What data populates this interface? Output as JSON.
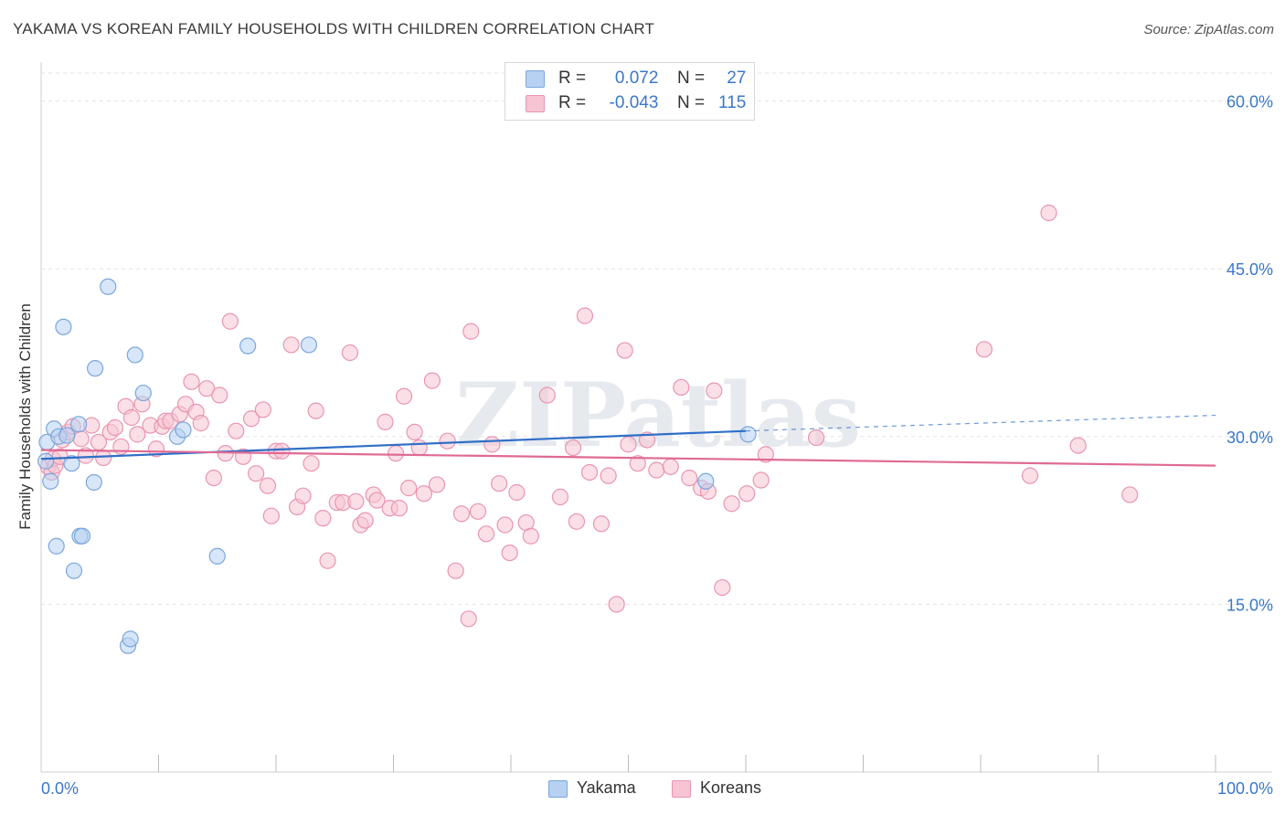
{
  "title": "YAKAMA VS KOREAN FAMILY HOUSEHOLDS WITH CHILDREN CORRELATION CHART",
  "source": "Source: ZipAtlas.com",
  "watermark": "ZIPatlas",
  "legend_top": {
    "rows": [
      {
        "r_label": "R =",
        "r_value": "0.072",
        "n_label": "N =",
        "n_value": "27"
      },
      {
        "r_label": "R =",
        "r_value": "-0.043",
        "n_label": "N =",
        "n_value": "115"
      }
    ]
  },
  "legend_bottom": [
    "Yakama",
    "Koreans"
  ],
  "colors": {
    "yakama_fill": "#b7d1f2",
    "yakama_stroke": "#7aa6dc",
    "yakama_line": "#2f6fc7",
    "koreans_fill": "#f7c4d4",
    "koreans_stroke": "#e895b0",
    "koreans_line": "#e06a94",
    "grid": "#e3e3e3",
    "axis_text": "#3a78c8"
  },
  "chart_data": {
    "type": "scatter",
    "title": "YAKAMA VS KOREAN FAMILY HOUSEHOLDS WITH CHILDREN CORRELATION CHART",
    "xlabel": "",
    "ylabel": "Family Households with Children",
    "xlim": [
      0,
      100
    ],
    "ylim": [
      0,
      62.5
    ],
    "x_tick_labels": [
      "0.0%",
      "100.0%"
    ],
    "y_ticks": [
      15,
      30,
      45,
      60
    ],
    "y_tick_labels": [
      "15.0%",
      "30.0%",
      "45.0%",
      "60.0%"
    ],
    "series": [
      {
        "name": "Yakama",
        "R": 0.072,
        "N": 27,
        "trend": {
          "x0": 0,
          "y0": 28.0,
          "x1": 60,
          "y1": 30.5,
          "dash_to_x": 100,
          "dash_to_y": 31.9
        },
        "points": [
          [
            0.4,
            27.8
          ],
          [
            0.5,
            29.5
          ],
          [
            0.8,
            26.0
          ],
          [
            1.1,
            30.7
          ],
          [
            1.3,
            20.2
          ],
          [
            1.5,
            30.0
          ],
          [
            1.9,
            39.8
          ],
          [
            2.2,
            30.1
          ],
          [
            2.6,
            27.6
          ],
          [
            2.8,
            18.0
          ],
          [
            3.2,
            31.1
          ],
          [
            3.3,
            21.1
          ],
          [
            3.5,
            21.1
          ],
          [
            4.5,
            25.9
          ],
          [
            4.6,
            36.1
          ],
          [
            5.7,
            43.4
          ],
          [
            7.4,
            11.3
          ],
          [
            7.6,
            11.9
          ],
          [
            8.0,
            37.3
          ],
          [
            8.7,
            33.9
          ],
          [
            11.6,
            30.0
          ],
          [
            12.1,
            30.6
          ],
          [
            15.0,
            19.3
          ],
          [
            17.6,
            38.1
          ],
          [
            22.8,
            38.2
          ],
          [
            56.6,
            26.0
          ],
          [
            60.2,
            30.2
          ]
        ]
      },
      {
        "name": "Koreans",
        "R": -0.043,
        "N": 115,
        "trend": {
          "x0": 0,
          "y0": 28.8,
          "x1": 100,
          "y1": 27.4
        },
        "points": [
          [
            0.6,
            27.3
          ],
          [
            0.9,
            26.8
          ],
          [
            1.0,
            28.0
          ],
          [
            1.2,
            27.4
          ],
          [
            1.6,
            28.2
          ],
          [
            1.8,
            29.7
          ],
          [
            2.3,
            30.4
          ],
          [
            2.7,
            30.9
          ],
          [
            3.4,
            29.8
          ],
          [
            3.8,
            28.3
          ],
          [
            4.3,
            31.0
          ],
          [
            4.9,
            29.5
          ],
          [
            5.3,
            28.1
          ],
          [
            5.9,
            30.4
          ],
          [
            6.3,
            30.8
          ],
          [
            6.8,
            29.1
          ],
          [
            7.2,
            32.7
          ],
          [
            7.7,
            31.7
          ],
          [
            8.2,
            30.2
          ],
          [
            8.6,
            32.9
          ],
          [
            9.3,
            31.0
          ],
          [
            9.8,
            28.9
          ],
          [
            10.3,
            30.9
          ],
          [
            10.6,
            31.4
          ],
          [
            11.0,
            31.4
          ],
          [
            11.8,
            32.0
          ],
          [
            12.3,
            32.9
          ],
          [
            12.8,
            34.9
          ],
          [
            13.2,
            32.2
          ],
          [
            13.6,
            31.2
          ],
          [
            14.1,
            34.3
          ],
          [
            14.7,
            26.3
          ],
          [
            15.2,
            33.7
          ],
          [
            15.7,
            28.5
          ],
          [
            16.1,
            40.3
          ],
          [
            16.6,
            30.5
          ],
          [
            17.2,
            28.2
          ],
          [
            17.9,
            31.6
          ],
          [
            18.3,
            26.7
          ],
          [
            18.9,
            32.4
          ],
          [
            19.3,
            25.6
          ],
          [
            19.6,
            22.9
          ],
          [
            20.0,
            28.7
          ],
          [
            20.5,
            28.7
          ],
          [
            21.3,
            38.2
          ],
          [
            21.8,
            23.7
          ],
          [
            22.3,
            24.7
          ],
          [
            23.0,
            27.6
          ],
          [
            23.4,
            32.3
          ],
          [
            24.0,
            22.7
          ],
          [
            24.4,
            18.9
          ],
          [
            25.2,
            24.1
          ],
          [
            25.7,
            24.1
          ],
          [
            26.3,
            37.5
          ],
          [
            26.8,
            24.2
          ],
          [
            27.2,
            22.1
          ],
          [
            27.6,
            22.5
          ],
          [
            28.3,
            24.8
          ],
          [
            28.6,
            24.3
          ],
          [
            29.3,
            31.3
          ],
          [
            29.7,
            23.6
          ],
          [
            30.2,
            28.5
          ],
          [
            30.5,
            23.6
          ],
          [
            30.9,
            33.6
          ],
          [
            31.3,
            25.4
          ],
          [
            31.8,
            30.4
          ],
          [
            32.2,
            29.0
          ],
          [
            32.6,
            24.9
          ],
          [
            33.3,
            35.0
          ],
          [
            33.7,
            25.7
          ],
          [
            34.6,
            29.6
          ],
          [
            35.3,
            18.0
          ],
          [
            35.8,
            23.1
          ],
          [
            36.4,
            13.7
          ],
          [
            36.6,
            39.4
          ],
          [
            37.2,
            23.3
          ],
          [
            37.9,
            21.3
          ],
          [
            38.4,
            29.3
          ],
          [
            39.0,
            25.8
          ],
          [
            39.5,
            22.1
          ],
          [
            39.9,
            19.6
          ],
          [
            40.5,
            25.0
          ],
          [
            41.3,
            22.3
          ],
          [
            41.7,
            21.1
          ],
          [
            43.1,
            33.7
          ],
          [
            44.2,
            24.6
          ],
          [
            45.3,
            29.0
          ],
          [
            45.6,
            22.4
          ],
          [
            46.3,
            40.8
          ],
          [
            46.7,
            26.8
          ],
          [
            47.7,
            22.2
          ],
          [
            48.3,
            26.5
          ],
          [
            49.0,
            15.0
          ],
          [
            49.7,
            37.7
          ],
          [
            50.0,
            29.3
          ],
          [
            50.8,
            27.6
          ],
          [
            51.6,
            29.7
          ],
          [
            52.4,
            27.0
          ],
          [
            53.6,
            27.3
          ],
          [
            54.5,
            34.4
          ],
          [
            55.2,
            26.3
          ],
          [
            56.2,
            25.4
          ],
          [
            56.8,
            25.1
          ],
          [
            57.3,
            34.1
          ],
          [
            58.0,
            16.5
          ],
          [
            58.8,
            24.0
          ],
          [
            60.1,
            24.9
          ],
          [
            61.3,
            26.1
          ],
          [
            61.7,
            28.4
          ],
          [
            66.0,
            29.9
          ],
          [
            80.3,
            37.8
          ],
          [
            84.2,
            26.5
          ],
          [
            88.3,
            29.2
          ],
          [
            85.8,
            50.0
          ],
          [
            92.7,
            24.8
          ]
        ]
      }
    ]
  }
}
